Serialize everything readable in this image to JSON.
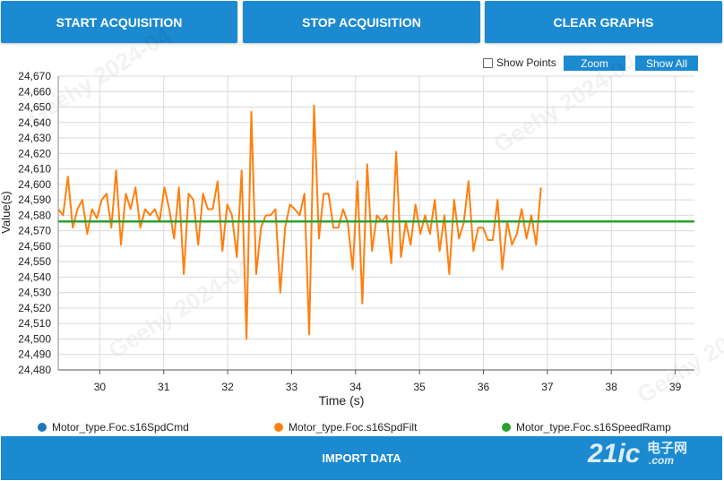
{
  "toolbar": {
    "start_label": "START ACQUISITION",
    "stop_label": "STOP ACQUISITION",
    "clear_label": "CLEAR GRAPHS"
  },
  "controls": {
    "show_points_label": "Show Points",
    "show_points_checked": false,
    "zoom_label": "Zoom",
    "show_all_label": "Show All"
  },
  "footer": {
    "import_label": "IMPORT DATA"
  },
  "watermark": {
    "text": "Geehy  2024-04"
  },
  "logo": {
    "brand": "21ic",
    "cn": "电子网",
    "url": ".com"
  },
  "colors": {
    "button": "#1b8ad0",
    "cmd": "#1f77b4",
    "filt": "#ff7f0e",
    "ramp": "#2ca02c"
  },
  "chart_data": {
    "type": "line",
    "xlabel": "Time (s)",
    "ylabel": "Value(s)",
    "xlim": [
      29.35,
      39.3
    ],
    "ylim": [
      24480,
      24670
    ],
    "xticks": [
      30,
      31,
      32,
      33,
      34,
      35,
      36,
      37,
      38,
      39
    ],
    "yticks": [
      24480,
      24490,
      24500,
      24510,
      24520,
      24530,
      24540,
      24550,
      24560,
      24570,
      24580,
      24590,
      24600,
      24610,
      24620,
      24630,
      24640,
      24650,
      24660,
      24670
    ],
    "grid": true,
    "legend_position": "bottom",
    "series": [
      {
        "name": "Motor_type.Foc.s16SpdCmd",
        "color": "#1f77b4",
        "x": [],
        "y": []
      },
      {
        "name": "Motor_type.Foc.s16SpdFilt",
        "color": "#ff7f0e",
        "x0": 29.35,
        "dx": 0.0755,
        "y": [
          24584,
          24580,
          24605,
          24572,
          24584,
          24590,
          24568,
          24584,
          24578,
          24590,
          24594,
          24572,
          24609,
          24561,
          24594,
          24584,
          24598,
          24572,
          24584,
          24580,
          24584,
          24576,
          24598,
          24584,
          24565,
          24598,
          24542,
          24594,
          24590,
          24561,
          24594,
          24584,
          24584,
          24602,
          24557,
          24587,
          24580,
          24553,
          24609,
          24500,
          24647,
          24542,
          24572,
          24580,
          24580,
          24584,
          24530,
          24572,
          24587,
          24584,
          24580,
          24594,
          24503,
          24651,
          24565,
          24594,
          24594,
          24572,
          24572,
          24584,
          24575,
          24545,
          24602,
          24523,
          24613,
          24557,
          24580,
          24576,
          24580,
          24549,
          24621,
          24553,
          24576,
          24561,
          24587,
          24568,
          24580,
          24568,
          24590,
          24557,
          24580,
          24542,
          24590,
          24565,
          24575,
          24602,
          24557,
          24572,
          24572,
          24564,
          24564,
          24590,
          24545,
          24576,
          24561,
          24568,
          24584,
          24565,
          24580,
          24561,
          24598
        ]
      },
      {
        "name": "Motor_type.Foc.s16SpeedRamp",
        "color": "#2ca02c",
        "x": [
          29.35,
          39.3
        ],
        "y": [
          24576,
          24576
        ]
      }
    ]
  }
}
